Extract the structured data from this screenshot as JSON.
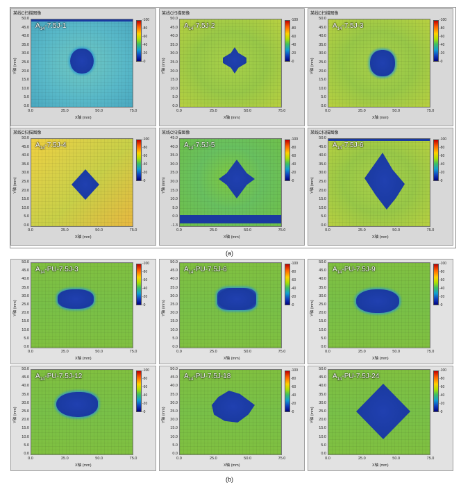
{
  "window_title": "某线C扫描图像",
  "axis": {
    "yticks": [
      "50.0",
      "45.0",
      "40.0",
      "35.0",
      "30.0",
      "25.0",
      "20.0",
      "15.0",
      "10.0",
      "5.0",
      "0.0"
    ],
    "yticks_a5": [
      "45.0",
      "40.0",
      "35.0",
      "30.0",
      "25.0",
      "20.0",
      "15.0",
      "10.0",
      "5.0",
      "0.0",
      "-1.3"
    ],
    "xticks": [
      "0.0",
      "25.0",
      "50.0",
      "75.0"
    ],
    "ylabel": "Y轴 (mm)",
    "xlabel": "X轴 (mm)"
  },
  "colorbar": {
    "ticks": [
      "100",
      "80",
      "60",
      "40",
      "20",
      "0"
    ]
  },
  "captions": {
    "a": "(a)",
    "b": "(b)"
  },
  "colors": {
    "defect": "#1a3aa0",
    "green": "#7cc040",
    "cyan": "#58b8c8",
    "yellow": "#c8d040"
  },
  "panels_a": [
    {
      "pre": "A",
      "sub": "14",
      "post": "-7.5J-1",
      "bg": "cyan"
    },
    {
      "pre": "A",
      "sub": "14",
      "post": "-7.5J-2",
      "bg": "yellowgreen"
    },
    {
      "pre": "A",
      "sub": "14",
      "post": "-7.5J-3",
      "bg": "yellowgreen"
    },
    {
      "pre": "A",
      "sub": "14",
      "post": "-7.5J-4",
      "bg": "yellow"
    },
    {
      "pre": "A",
      "sub": "14",
      "post": "-7.5J-5",
      "bg": "green"
    },
    {
      "pre": "A",
      "sub": "14",
      "post": "-7.5J-6",
      "bg": "yellowgreen"
    }
  ],
  "panels_b": [
    {
      "pre": "A",
      "sub": "14",
      "post": "-PU-7.5J-3"
    },
    {
      "pre": "A",
      "sub": "14",
      "post": "-PU-7.5J-6"
    },
    {
      "pre": "A",
      "sub": "14",
      "post": "-PU-7.5J-9"
    },
    {
      "pre": "A",
      "sub": "14",
      "post": "-PU-7.5J-12"
    },
    {
      "pre": "A",
      "sub": "14",
      "post": "-PU-7.5J-18"
    },
    {
      "pre": "A",
      "sub": "14",
      "post": "-PU-7.5J-24"
    }
  ]
}
